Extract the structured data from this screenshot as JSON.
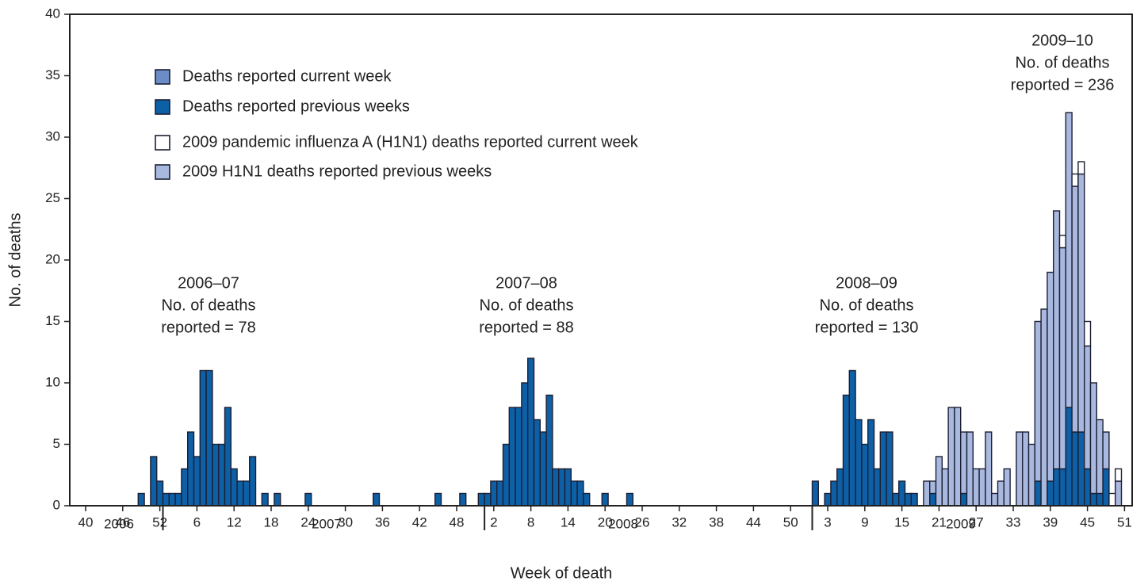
{
  "chart_data": {
    "type": "stacked-bar",
    "x_label": "Week of death",
    "y_label": "No. of deaths",
    "ylim": [
      0,
      40
    ],
    "yticks": [
      0,
      5,
      10,
      15,
      20,
      25,
      30,
      35,
      40
    ],
    "years": [
      "2006",
      "2007",
      "2008",
      "2009"
    ],
    "annotations": [
      [
        "2006–07",
        "No. of deaths",
        "reported = 78"
      ],
      [
        "2007–08",
        "No. of deaths",
        "reported = 88"
      ],
      [
        "2008–09",
        "No. of deaths",
        "reported = 130"
      ],
      [
        "2009–10",
        "No. of deaths",
        "reported = 236"
      ]
    ],
    "categories": [
      "40",
      null,
      null,
      null,
      null,
      null,
      "46",
      null,
      null,
      null,
      null,
      null,
      "52",
      null,
      null,
      null,
      null,
      null,
      "6",
      null,
      null,
      null,
      null,
      null,
      "12",
      null,
      null,
      null,
      null,
      null,
      "18",
      null,
      null,
      null,
      null,
      null,
      "24",
      null,
      null,
      null,
      null,
      null,
      "30",
      null,
      null,
      null,
      null,
      null,
      "36",
      null,
      null,
      null,
      null,
      null,
      "42",
      null,
      null,
      null,
      null,
      null,
      "48",
      null,
      null,
      null,
      null,
      null,
      "2",
      null,
      null,
      null,
      null,
      null,
      "8",
      null,
      null,
      null,
      null,
      null,
      "14",
      null,
      null,
      null,
      null,
      null,
      "20",
      null,
      null,
      null,
      null,
      null,
      "26",
      null,
      null,
      null,
      null,
      null,
      "32",
      null,
      null,
      null,
      null,
      null,
      "38",
      null,
      null,
      null,
      null,
      null,
      "44",
      null,
      null,
      null,
      null,
      null,
      "50",
      null,
      null,
      null,
      null,
      null,
      "3",
      null,
      null,
      null,
      null,
      null,
      "9",
      null,
      null,
      null,
      null,
      null,
      "15",
      null,
      null,
      null,
      null,
      null,
      "21",
      null,
      null,
      null,
      null,
      null,
      "27",
      null,
      null,
      null,
      null,
      null,
      "33",
      null,
      null,
      null,
      null,
      null,
      "39",
      null,
      null,
      null,
      null,
      null,
      "45",
      null,
      null,
      null,
      null,
      null,
      "51"
    ],
    "series": [
      {
        "name": "Deaths reported current week",
        "color": "#6b8cc7",
        "values": [
          0,
          0,
          0,
          0,
          0,
          0,
          0,
          0,
          0,
          0,
          0,
          0,
          0,
          0,
          0,
          0,
          0,
          0,
          0,
          0,
          0,
          0,
          0,
          0,
          0,
          0,
          0,
          0,
          0,
          0,
          0,
          0,
          0,
          0,
          0,
          0,
          0,
          0,
          0,
          0,
          0,
          0,
          0,
          0,
          0,
          0,
          0,
          0,
          0,
          0,
          0,
          0,
          0,
          0,
          0,
          0,
          0,
          0,
          0,
          0,
          0,
          0,
          0,
          0,
          0,
          0,
          0,
          0,
          0,
          0,
          0,
          0,
          0,
          0,
          0,
          0,
          0,
          0,
          0,
          0,
          0,
          0,
          0,
          0,
          0,
          0,
          0,
          0,
          0,
          0,
          0,
          0,
          0,
          0,
          0,
          0,
          0,
          0,
          0,
          0,
          0,
          0,
          0,
          0,
          0,
          0,
          0,
          0,
          0,
          0,
          0,
          0,
          0,
          0,
          0,
          0,
          0,
          0,
          0,
          0,
          0,
          0,
          0,
          0,
          0,
          0,
          0,
          0,
          0,
          0,
          0,
          0,
          0,
          0,
          0,
          0,
          0,
          0,
          0,
          0,
          0,
          0,
          0,
          0,
          0,
          0,
          0,
          0,
          0,
          0,
          0,
          0,
          0,
          0,
          0,
          0,
          0,
          0,
          0,
          0,
          0,
          0,
          0,
          0,
          0,
          0,
          0,
          0,
          0
        ]
      },
      {
        "name": "Deaths reported previous weeks",
        "color": "#0d5fa6",
        "values": [
          0,
          0,
          0,
          0,
          0,
          0,
          0,
          0,
          0,
          1,
          0,
          4,
          2,
          1,
          1,
          1,
          3,
          6,
          4,
          11,
          11,
          5,
          5,
          8,
          3,
          2,
          2,
          4,
          0,
          1,
          0,
          1,
          0,
          0,
          0,
          0,
          1,
          0,
          0,
          0,
          0,
          0,
          0,
          0,
          0,
          0,
          0,
          1,
          0,
          0,
          0,
          0,
          0,
          0,
          0,
          0,
          0,
          1,
          0,
          0,
          0,
          1,
          0,
          0,
          1,
          1,
          2,
          2,
          5,
          8,
          8,
          10,
          12,
          7,
          6,
          9,
          3,
          3,
          3,
          2,
          2,
          1,
          0,
          0,
          1,
          0,
          0,
          0,
          1,
          0,
          0,
          0,
          0,
          0,
          0,
          0,
          0,
          0,
          0,
          0,
          0,
          0,
          0,
          0,
          0,
          0,
          0,
          0,
          0,
          0,
          0,
          0,
          0,
          0,
          0,
          0,
          0,
          0,
          2,
          0,
          1,
          2,
          3,
          9,
          11,
          7,
          5,
          7,
          3,
          6,
          6,
          1,
          2,
          1,
          1,
          0,
          0,
          1,
          0,
          0,
          0,
          0,
          1,
          0,
          0,
          0,
          0,
          0,
          0,
          0,
          0,
          0,
          0,
          0,
          2,
          0,
          2,
          3,
          3,
          8,
          6,
          6,
          3,
          1,
          1,
          3,
          0,
          0,
          0
        ]
      },
      {
        "name": "2009 pandemic influenza A (H1N1) deaths reported current week",
        "color": "#ffffff",
        "values": [
          0,
          0,
          0,
          0,
          0,
          0,
          0,
          0,
          0,
          0,
          0,
          0,
          0,
          0,
          0,
          0,
          0,
          0,
          0,
          0,
          0,
          0,
          0,
          0,
          0,
          0,
          0,
          0,
          0,
          0,
          0,
          0,
          0,
          0,
          0,
          0,
          0,
          0,
          0,
          0,
          0,
          0,
          0,
          0,
          0,
          0,
          0,
          0,
          0,
          0,
          0,
          0,
          0,
          0,
          0,
          0,
          0,
          0,
          0,
          0,
          0,
          0,
          0,
          0,
          0,
          0,
          0,
          0,
          0,
          0,
          0,
          0,
          0,
          0,
          0,
          0,
          0,
          0,
          0,
          0,
          0,
          0,
          0,
          0,
          0,
          0,
          0,
          0,
          0,
          0,
          0,
          0,
          0,
          0,
          0,
          0,
          0,
          0,
          0,
          0,
          0,
          0,
          0,
          0,
          0,
          0,
          0,
          0,
          0,
          0,
          0,
          0,
          0,
          0,
          0,
          0,
          0,
          0,
          0,
          0,
          0,
          0,
          0,
          0,
          0,
          0,
          0,
          0,
          0,
          0,
          0,
          0,
          0,
          0,
          0,
          0,
          0,
          0,
          0,
          0,
          0,
          0,
          0,
          0,
          0,
          0,
          0,
          0,
          0,
          0,
          0,
          0,
          0,
          0,
          0,
          0,
          0,
          0,
          1,
          0,
          1,
          1,
          2,
          0,
          0,
          0,
          1,
          1,
          0
        ]
      },
      {
        "name": "2009 H1N1 deaths reported previous weeks",
        "color": "#a8b8de",
        "values": [
          0,
          0,
          0,
          0,
          0,
          0,
          0,
          0,
          0,
          0,
          0,
          0,
          0,
          0,
          0,
          0,
          0,
          0,
          0,
          0,
          0,
          0,
          0,
          0,
          0,
          0,
          0,
          0,
          0,
          0,
          0,
          0,
          0,
          0,
          0,
          0,
          0,
          0,
          0,
          0,
          0,
          0,
          0,
          0,
          0,
          0,
          0,
          0,
          0,
          0,
          0,
          0,
          0,
          0,
          0,
          0,
          0,
          0,
          0,
          0,
          0,
          0,
          0,
          0,
          0,
          0,
          0,
          0,
          0,
          0,
          0,
          0,
          0,
          0,
          0,
          0,
          0,
          0,
          0,
          0,
          0,
          0,
          0,
          0,
          0,
          0,
          0,
          0,
          0,
          0,
          0,
          0,
          0,
          0,
          0,
          0,
          0,
          0,
          0,
          0,
          0,
          0,
          0,
          0,
          0,
          0,
          0,
          0,
          0,
          0,
          0,
          0,
          0,
          0,
          0,
          0,
          0,
          0,
          0,
          0,
          0,
          0,
          0,
          0,
          0,
          0,
          0,
          0,
          0,
          0,
          0,
          0,
          0,
          0,
          0,
          0,
          2,
          1,
          4,
          3,
          8,
          8,
          5,
          6,
          3,
          3,
          6,
          1,
          2,
          3,
          0,
          6,
          6,
          5,
          13,
          16,
          17,
          21,
          18,
          24,
          20,
          21,
          10,
          9,
          6,
          3,
          0,
          2,
          0
        ]
      }
    ]
  }
}
